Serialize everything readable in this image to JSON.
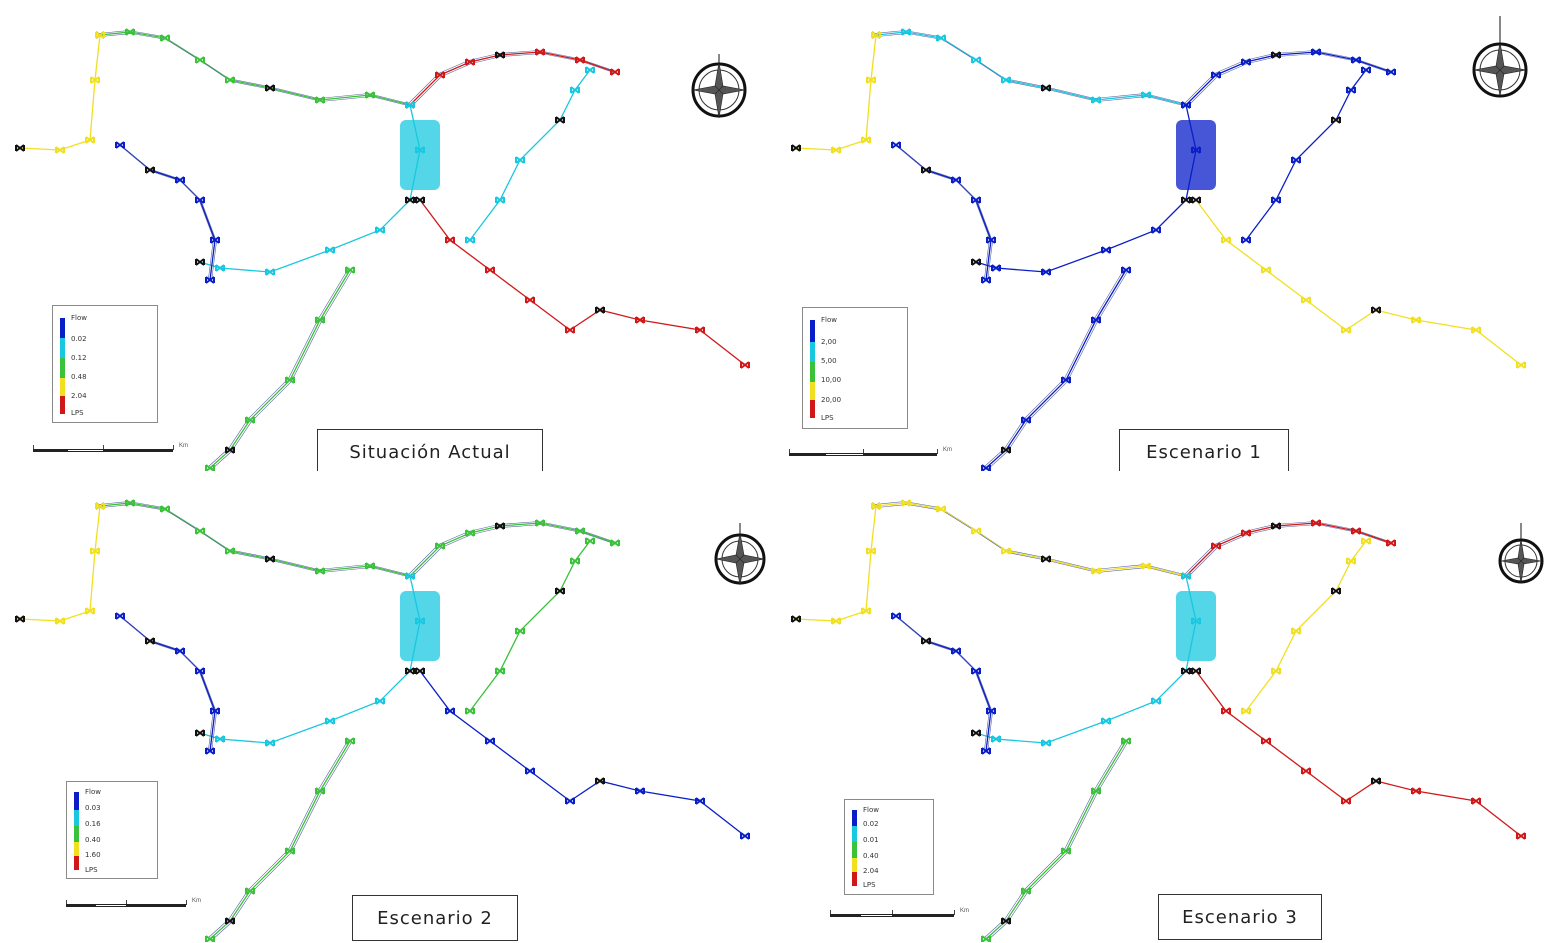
{
  "colors": {
    "blue": "#0a1ec8",
    "cyan": "#18c8e0",
    "green": "#3ac23a",
    "yellow": "#f0e020",
    "red": "#d01818",
    "black": "#111111"
  },
  "panels": [
    {
      "id": "situacion-actual",
      "caption": "Situación Actual",
      "scheme": [
        "green",
        "yellow",
        "red",
        "cyan",
        "blue",
        "red",
        "green",
        "cyan"
      ],
      "legend": {
        "title": "Flow",
        "values": [
          "0.02",
          "0.12",
          "0.48",
          "2.04",
          "LPS"
        ]
      },
      "scale_unit": "Km"
    },
    {
      "id": "escenario-1",
      "caption": "Escenario 1",
      "scheme": [
        "cyan",
        "yellow",
        "blue",
        "blue",
        "blue",
        "yellow",
        "blue",
        "blue"
      ],
      "legend": {
        "title": "Flow",
        "values": [
          "2,00",
          "5,00",
          "10,00",
          "20,00",
          "LPS"
        ]
      },
      "scale_unit": "Km"
    },
    {
      "id": "escenario-2",
      "caption": "Escenario 2",
      "scheme": [
        "green",
        "yellow",
        "green",
        "cyan",
        "blue",
        "blue",
        "green",
        "green"
      ],
      "legend": {
        "title": "Flow",
        "values": [
          "0.03",
          "0.16",
          "0.40",
          "1.60",
          "LPS"
        ]
      },
      "scale_unit": "Km"
    },
    {
      "id": "escenario-3",
      "caption": "Escenario 3",
      "scheme": [
        "yellow",
        "yellow",
        "red",
        "cyan",
        "blue",
        "red",
        "green",
        "yellow"
      ],
      "legend": {
        "title": "Flow",
        "values": [
          "0.02",
          "0.01",
          "0.40",
          "2.04",
          "LPS"
        ]
      },
      "scale_unit": "Km"
    }
  ]
}
